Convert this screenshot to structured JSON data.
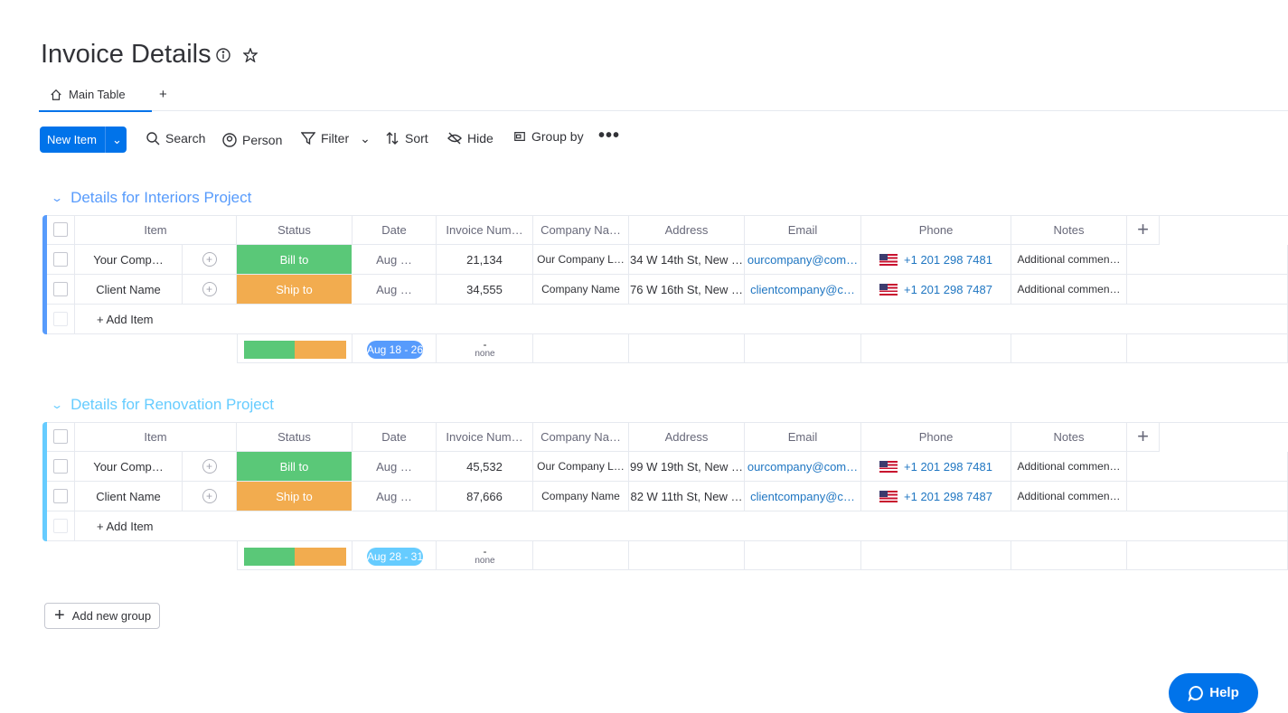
{
  "header": {
    "title": "Invoice Details",
    "tab": "Main Table"
  },
  "toolbar": {
    "new_item": "New Item",
    "search": "Search",
    "person": "Person",
    "filter": "Filter",
    "sort": "Sort",
    "hide": "Hide",
    "group_by": "Group by"
  },
  "groups": [
    {
      "title": "Details for Interiors Project",
      "columns": [
        "Item",
        "Status",
        "Date",
        "Invoice Num…",
        "Company Na…",
        "Address",
        "Email",
        "Phone",
        "Notes"
      ],
      "rows": [
        [
          "Your Comp…",
          "Bill to",
          "Aug …",
          "21,134",
          "Our Company L…",
          "34 W 14th St, New …",
          "ourcompany@com…",
          "+1 201 298 7481",
          "Additional commen…"
        ],
        [
          "Client Name",
          "Ship to",
          "Aug …",
          "34,555",
          "Company Name",
          "76 W 16th St, New …",
          "clientcompany@c…",
          "+1 201 298 7487",
          "Additional commen…"
        ]
      ],
      "add_item": "+ Add Item",
      "summary": {
        "date": "Aug 18 - 26",
        "invoice_dash": "-",
        "invoice_none": "none"
      }
    },
    {
      "title": "Details for Renovation Project",
      "columns": [
        "Item",
        "Status",
        "Date",
        "Invoice Num…",
        "Company Na…",
        "Address",
        "Email",
        "Phone",
        "Notes"
      ],
      "rows": [
        [
          "Your Comp…",
          "Bill to",
          "Aug …",
          "45,532",
          "Our Company L…",
          "99 W 19th St, New …",
          "ourcompany@com…",
          "+1 201 298 7481",
          "Additional commen…"
        ],
        [
          "Client Name",
          "Ship to",
          "Aug …",
          "87,666",
          "Company Name",
          "82 W 11th St, New …",
          "clientcompany@c…",
          "+1 201 298 7487",
          "Additional commen…"
        ]
      ],
      "add_item": "+ Add Item",
      "summary": {
        "date": "Aug 28 - 31",
        "invoice_dash": "-",
        "invoice_none": "none"
      }
    }
  ],
  "add_group": "Add new group",
  "help": "Help"
}
